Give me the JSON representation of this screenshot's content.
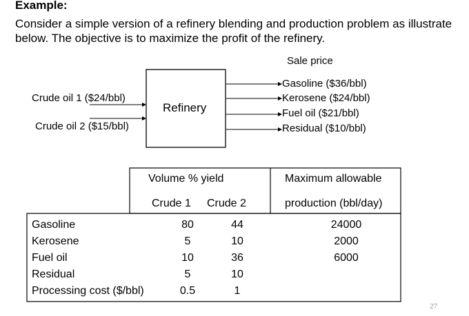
{
  "title": "Example:",
  "intro": "Consider a simple version of a refinery blending and production problem as illustrate below. The objective is to maximize the profit of the refinery.",
  "diagram": {
    "sale_price_label": "Sale price",
    "refinery_label": "Refinery",
    "inputs": [
      "Crude oil 1 ($24/bbl)",
      "Crude oil 2 ($15/bbl)"
    ],
    "outputs": [
      "Gasoline ($36/bbl)",
      "Kerosene ($24/bbl)",
      "Fuel oil ($21/bbl)",
      "Residual ($10/bbl)"
    ]
  },
  "table": {
    "header_group": "Volume % yield",
    "col_crude1": "Crude 1",
    "col_crude2": "Crude 2",
    "col_max_line1": "Maximum allowable",
    "col_max_line2": "production (bbl/day)",
    "rows": [
      {
        "label": "Gasoline",
        "c1": "80",
        "c2": "44",
        "max": "24000"
      },
      {
        "label": "Kerosene",
        "c1": "5",
        "c2": "10",
        "max": "2000"
      },
      {
        "label": "Fuel oil",
        "c1": "10",
        "c2": "36",
        "max": "6000"
      },
      {
        "label": "Residual",
        "c1": "5",
        "c2": "10",
        "max": ""
      },
      {
        "label": "Processing cost ($/bbl)",
        "c1": "0.5",
        "c2": "1",
        "max": ""
      }
    ]
  },
  "page_number": "27"
}
